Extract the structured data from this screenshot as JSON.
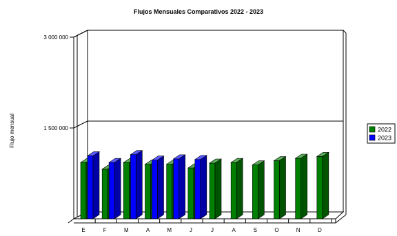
{
  "chart_data": {
    "type": "bar",
    "title": "Flujos Mensuales Comparativos 2022 - 2023",
    "xlabel": "",
    "ylabel": "Flujo mensual",
    "categories": [
      "E",
      "F",
      "M",
      "A",
      "M",
      "J",
      "J",
      "A",
      "S",
      "O",
      "N",
      "D"
    ],
    "series": [
      {
        "name": "2022",
        "color": "#008000",
        "values": [
          930000,
          820000,
          930000,
          900000,
          900000,
          840000,
          920000,
          930000,
          890000,
          960000,
          1000000,
          1030000
        ]
      },
      {
        "name": "2023",
        "color": "#0000ff",
        "values": [
          1040000,
          930000,
          1060000,
          970000,
          990000,
          980000,
          null,
          null,
          null,
          null,
          null,
          null
        ]
      }
    ],
    "yticks": [
      {
        "value": 1500000,
        "label": "1 500 000"
      },
      {
        "value": 3000000,
        "label": "3 000 000"
      }
    ],
    "ylim": [
      0,
      3000000
    ],
    "grid": true,
    "legend": "right",
    "style": "3d"
  }
}
